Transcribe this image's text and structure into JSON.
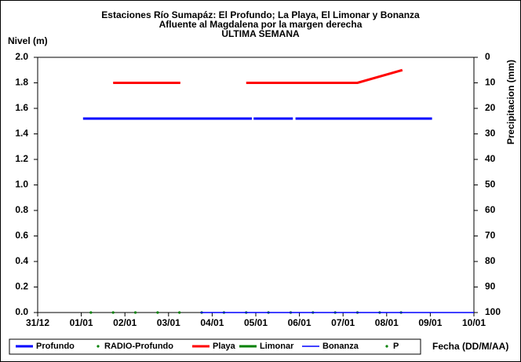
{
  "chart_data": {
    "type": "line",
    "title": [
      "Estaciones Río Sumapáz: El Profundo; La Playa, El Limonar y Bonanza",
      "Afluente al Magdalena por la margen derecha",
      "ULTIMA SEMANA"
    ],
    "ylabel": "Nivel (m)",
    "y2label": "Precipitacion (mm)",
    "xlabel": "Fecha (DD/M/AA)",
    "xlim": [
      0,
      10
    ],
    "xticks": [
      {
        "value": 0,
        "label": "31/12"
      },
      {
        "value": 1,
        "label": "01/01"
      },
      {
        "value": 2,
        "label": "02/01"
      },
      {
        "value": 3,
        "label": "03/01"
      },
      {
        "value": 4,
        "label": "04/01"
      },
      {
        "value": 5,
        "label": "05/01"
      },
      {
        "value": 6,
        "label": "06/01"
      },
      {
        "value": 7,
        "label": "07/01"
      },
      {
        "value": 8,
        "label": "08/01"
      },
      {
        "value": 9,
        "label": "09/01"
      },
      {
        "value": 10,
        "label": "10/01"
      }
    ],
    "ylim": [
      0,
      2
    ],
    "yticks": [
      {
        "value": 0,
        "label": "0.0"
      },
      0.2,
      0.4,
      0.6,
      0.8,
      {
        "value": 1,
        "label": "1.0"
      },
      1.2,
      1.4,
      1.6,
      1.8,
      {
        "value": 2,
        "label": "2.0"
      }
    ],
    "y2lim": [
      100,
      0
    ],
    "y2ticks": [
      0,
      10,
      20,
      30,
      40,
      50,
      60,
      70,
      80,
      90,
      100
    ],
    "series": [
      {
        "name": "Profundo",
        "color": "#0000ff",
        "style": "line",
        "width": 3,
        "x": [
          1.04,
          4.91,
          null,
          4.95,
          5.85,
          null,
          5.91,
          9.04
        ],
        "values": [
          1.52,
          1.52,
          null,
          1.52,
          1.52,
          null,
          1.52,
          1.52
        ]
      },
      {
        "name": "RADIO-Profundo",
        "color": "#008000",
        "style": "dots",
        "x": [
          1.22,
          1.73,
          2.24,
          2.75,
          3.25,
          3.76,
          4.27,
          4.78,
          5.29,
          5.8,
          6.31,
          6.82,
          7.33,
          7.84,
          8.33
        ],
        "values": [
          0,
          0,
          0,
          0,
          0,
          0,
          0,
          0,
          0,
          0,
          0,
          0,
          0,
          0,
          0
        ]
      },
      {
        "name": "Playa",
        "color": "#ff0000",
        "style": "line",
        "width": 3,
        "x": [
          1.73,
          3.27,
          null,
          4.78,
          7.33,
          8.36
        ],
        "values": [
          1.8,
          1.8,
          null,
          1.8,
          1.8,
          1.9
        ]
      },
      {
        "name": "Limonar",
        "color": "#008000",
        "style": "line",
        "width": 3,
        "x": [],
        "values": []
      },
      {
        "name": "Bonanza",
        "color": "#0000ff",
        "style": "line",
        "width": 1.5,
        "x": [
          3.73,
          10
        ],
        "values": [
          0,
          0
        ]
      },
      {
        "name": "P",
        "color": "#008000",
        "style": "dots",
        "axis": "y2",
        "x": [],
        "values": []
      }
    ]
  }
}
